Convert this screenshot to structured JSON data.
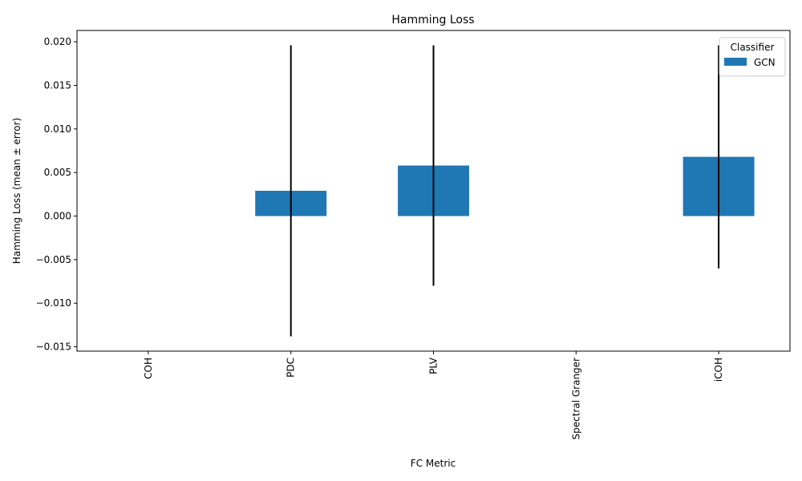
{
  "chart_data": {
    "type": "bar",
    "title": "Hamming Loss",
    "xlabel": "FC Metric",
    "ylabel": "Hamming Loss (mean ± error)",
    "categories": [
      "COH",
      "PDC",
      "PLV",
      "Spectral Granger",
      "iCOH"
    ],
    "series": [
      {
        "name": "GCN",
        "color": "#1f77b4",
        "values": [
          null,
          0.0029,
          0.0058,
          null,
          0.0068
        ],
        "errors": [
          null,
          0.0167,
          0.0138,
          null,
          0.0128
        ]
      }
    ],
    "ylim": [
      -0.0155,
      0.0213
    ],
    "yticks": [
      -0.015,
      -0.01,
      -0.005,
      0.0,
      0.005,
      0.01,
      0.015,
      0.02
    ],
    "ytick_labels": [
      "−0.015",
      "−0.010",
      "−0.005",
      "0.000",
      "0.005",
      "0.010",
      "0.015",
      "0.020"
    ],
    "legend": {
      "title": "Classifier",
      "position": "top-right"
    },
    "grid": false
  }
}
